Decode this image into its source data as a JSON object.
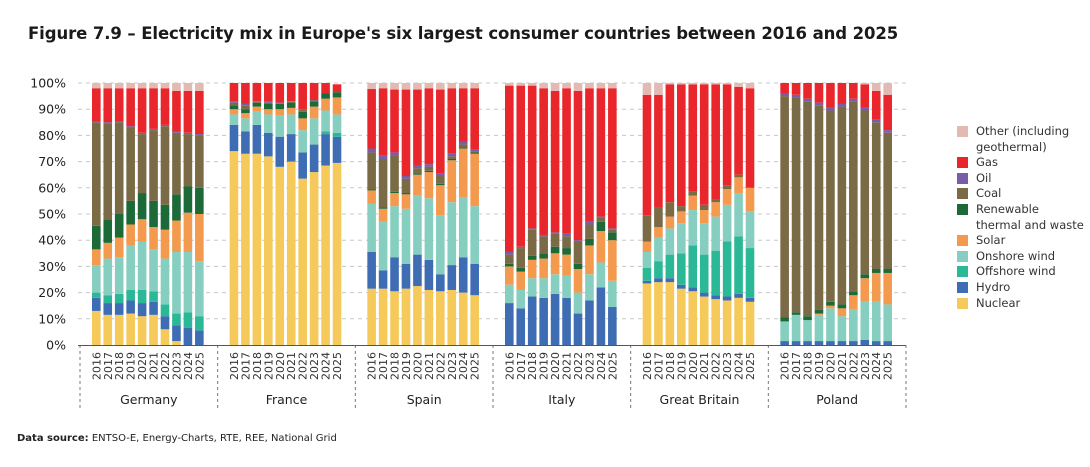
{
  "title": "Figure 7.9 – Electricity mix in Europe's six largest consumer countries between 2016 and 2025",
  "source": {
    "label": "Data source:",
    "text": "ENTSO-E, Energy-Charts, RTE, REE, National Grid"
  },
  "chart_data": {
    "type": "bar",
    "stacked": true,
    "title": "Figure 7.9 – Electricity mix in Europe's six largest consumer countries between 2016 and 2025",
    "xlabel": "",
    "ylabel": "",
    "ylim": [
      0,
      100
    ],
    "yticks": [
      "0%",
      "10%",
      "20%",
      "30%",
      "40%",
      "50%",
      "60%",
      "70%",
      "80%",
      "90%",
      "100%"
    ],
    "grid": true,
    "legend_position": "right",
    "countries": [
      "Germany",
      "France",
      "Spain",
      "Italy",
      "Great Britain",
      "Poland"
    ],
    "years": [
      "2016",
      "2017",
      "2018",
      "2019",
      "2020",
      "2021",
      "2022",
      "2023",
      "2024",
      "2025"
    ],
    "series": [
      {
        "name": "Nuclear",
        "color": "#f5c95a",
        "values": {
          "Germany": [
            13,
            11.5,
            11.5,
            12,
            11,
            11.5,
            6,
            1.5,
            0,
            0
          ],
          "France": [
            74,
            73,
            73,
            72,
            68,
            70,
            63.5,
            66,
            68.5,
            69.5
          ],
          "Spain": [
            21.5,
            21.5,
            20.5,
            21.5,
            22.5,
            21,
            20.5,
            21,
            20,
            19
          ],
          "Italy": [
            0,
            0,
            0,
            0,
            0,
            0,
            0,
            0,
            0,
            0
          ],
          "Great Britain": [
            23.5,
            24,
            24,
            21.5,
            20.5,
            18.5,
            17.5,
            17,
            18,
            16.5
          ],
          "Poland": [
            0,
            0,
            0,
            0,
            0,
            0,
            0,
            0,
            0,
            0
          ]
        }
      },
      {
        "name": "Hydro",
        "color": "#3e6db4",
        "values": {
          "Germany": [
            5,
            4.5,
            4.5,
            5,
            5,
            5,
            5,
            6,
            6.5,
            5.5
          ],
          "France": [
            10,
            8.5,
            11,
            9,
            11.5,
            10.5,
            10,
            10.5,
            12,
            10
          ],
          "Spain": [
            14,
            7,
            13,
            9.5,
            12,
            11.5,
            6.5,
            9.5,
            13.5,
            12
          ],
          "Italy": [
            16,
            14,
            18.5,
            18,
            19.5,
            18,
            12,
            17,
            22,
            14.5
          ],
          "Great Britain": [
            1,
            1.5,
            1.5,
            1.5,
            1.5,
            1.5,
            1.5,
            1.5,
            1.5,
            1.5
          ],
          "Poland": [
            1.5,
            1.5,
            1.5,
            1.5,
            1.5,
            1.5,
            1.5,
            2,
            1.5,
            1.5
          ]
        }
      },
      {
        "name": "Offshore wind",
        "color": "#2bb897",
        "values": {
          "Germany": [
            2,
            3,
            3.5,
            4,
            5,
            4,
            4.5,
            4.5,
            6,
            5.5
          ],
          "France": [
            0,
            0,
            0,
            0,
            0,
            0,
            0,
            0,
            1,
            1.5
          ],
          "Spain": [
            0,
            0,
            0,
            0,
            0,
            0,
            0,
            0,
            0,
            0
          ],
          "Italy": [
            0,
            0,
            0,
            0,
            0,
            0,
            0,
            0,
            0,
            0
          ],
          "Great Britain": [
            5,
            6.5,
            9,
            12,
            16,
            14.5,
            17,
            21,
            22,
            19
          ],
          "Poland": [
            0,
            0,
            0,
            0,
            0,
            0,
            0,
            0,
            0,
            0
          ]
        }
      },
      {
        "name": "Onshore wind",
        "color": "#86cfc0",
        "values": {
          "Germany": [
            10.5,
            14,
            14,
            17,
            18.5,
            16,
            17.5,
            23.5,
            23,
            21
          ],
          "France": [
            4,
            5,
            5,
            7,
            8,
            7.5,
            8.5,
            10,
            8,
            7
          ],
          "Spain": [
            18.5,
            18.5,
            19.5,
            21,
            22.5,
            23.5,
            22.5,
            24,
            23,
            22
          ],
          "Italy": [
            7,
            7,
            7,
            7.5,
            7.5,
            8.5,
            8,
            10,
            9.5,
            10
          ],
          "Great Britain": [
            6,
            9,
            10,
            11.5,
            13.5,
            12,
            13,
            14,
            16.5,
            14
          ],
          "Poland": [
            7.5,
            10,
            8,
            10,
            12.5,
            9.5,
            12,
            14.5,
            15,
            14
          ]
        }
      },
      {
        "name": "Solar",
        "color": "#f39a4f",
        "values": {
          "Germany": [
            6,
            6,
            7.5,
            8,
            8.5,
            8.5,
            11,
            12,
            15,
            18
          ],
          "France": [
            2,
            2,
            2,
            2,
            2.5,
            2.5,
            4.5,
            4.5,
            4.5,
            6.5
          ],
          "Spain": [
            5,
            5,
            5,
            5.5,
            8,
            10,
            11.5,
            16,
            18.5,
            20
          ],
          "Italy": [
            7,
            7,
            7,
            7.5,
            8,
            8,
            9,
            11,
            12,
            15.5
          ],
          "Great Britain": [
            4,
            4,
            4.5,
            4.5,
            5.5,
            5,
            5.5,
            6,
            6,
            9
          ],
          "Poland": [
            0,
            0,
            0,
            0.5,
            1,
            3,
            5.5,
            9,
            11,
            12
          ]
        }
      },
      {
        "name": "Renewable thermal and waste",
        "color": "#1c6a38",
        "values": {
          "Germany": [
            9,
            9,
            9,
            9,
            10,
            10,
            9.5,
            10,
            10,
            10
          ],
          "France": [
            1.5,
            1.5,
            1.5,
            2,
            2,
            2,
            2.5,
            2,
            2,
            2
          ],
          "Spain": [
            0.5,
            0.5,
            0.5,
            0.5,
            0.5,
            0.5,
            0.5,
            0.5,
            0.5,
            0.5
          ],
          "Italy": [
            1,
            1.5,
            1.5,
            2,
            2.5,
            2.5,
            2,
            2.5,
            3.5,
            3
          ],
          "Great Britain": [
            0,
            0,
            0,
            0,
            0,
            0,
            0,
            0,
            0,
            0
          ],
          "Poland": [
            1.5,
            1,
            1.5,
            1.5,
            1.5,
            1.5,
            1.5,
            1.5,
            1.5,
            1.5
          ]
        }
      },
      {
        "name": "Coal",
        "color": "#7a6a46",
        "values": {
          "Germany": [
            39.5,
            36.5,
            35,
            28,
            22.5,
            27,
            30,
            23.5,
            20,
            20
          ],
          "France": [
            1,
            1.5,
            0.3,
            0.5,
            0.3,
            0.3,
            1,
            0.3,
            0,
            0
          ],
          "Spain": [
            14,
            18.5,
            14,
            5.5,
            2,
            1.5,
            3,
            1,
            1,
            0.5
          ],
          "Italy": [
            3.5,
            7.5,
            10,
            6.5,
            5,
            4.5,
            8.5,
            5.5,
            1.5,
            1
          ],
          "Great Britain": [
            10,
            7.5,
            5.5,
            2,
            1.5,
            2,
            1,
            1.5,
            1,
            0
          ],
          "Poland": [
            84.5,
            82,
            82,
            78,
            73,
            75.5,
            72.5,
            62.5,
            56,
            52
          ]
        }
      },
      {
        "name": "Oil",
        "color": "#7b5ca8",
        "values": {
          "Germany": [
            0.5,
            0.5,
            0.5,
            0.5,
            0.5,
            0.5,
            0.5,
            0.5,
            0.5,
            0.5
          ],
          "France": [
            0.5,
            0.5,
            0.2,
            0.5,
            0.2,
            0.2,
            0,
            0.2,
            0,
            0
          ],
          "Spain": [
            1.5,
            1.5,
            1,
            1,
            1,
            1,
            1,
            1,
            1,
            0.5
          ],
          "Italy": [
            1,
            0.5,
            0.5,
            0.5,
            0.5,
            1,
            0.5,
            1,
            0.5,
            0.5
          ],
          "Great Britain": [
            0,
            0,
            0,
            0,
            0,
            0,
            0,
            0,
            0,
            0
          ],
          "Poland": [
            1,
            1,
            1,
            1,
            1,
            1,
            1,
            1,
            1,
            1
          ]
        }
      },
      {
        "name": "Gas",
        "color": "#e8262b",
        "values": {
          "Germany": [
            12.5,
            13,
            12.5,
            14.5,
            17,
            15.5,
            14,
            15.5,
            16,
            16.5
          ],
          "France": [
            7,
            8,
            7,
            7,
            7.5,
            7,
            10,
            6.5,
            4,
            3
          ],
          "Spain": [
            22.7,
            25.5,
            24,
            33,
            29,
            29,
            32,
            25,
            20.5,
            23.5
          ],
          "Italy": [
            63.5,
            61.5,
            54.5,
            56,
            54,
            55.5,
            57,
            51,
            49,
            53.5
          ],
          "Great Britain": [
            46,
            43,
            45,
            46.5,
            41,
            46,
            44,
            38.5,
            33.5,
            38
          ],
          "Poland": [
            4,
            4.5,
            6,
            7.5,
            9.5,
            8,
            6,
            9,
            11,
            13.5
          ]
        }
      },
      {
        "name": "Other (including geothermal)",
        "color": "#e2bab3",
        "values": {
          "Germany": [
            2,
            2,
            2,
            2,
            2,
            2,
            2,
            3,
            3,
            3
          ],
          "France": [
            0,
            0,
            0,
            0,
            0,
            0,
            0,
            0,
            0,
            0
          ],
          "Spain": [
            2.3,
            2,
            2.5,
            2.5,
            2.5,
            2,
            2.5,
            2,
            2,
            2
          ],
          "Italy": [
            1,
            1,
            1,
            2,
            3,
            2,
            3,
            2,
            2,
            2
          ],
          "Great Britain": [
            4.5,
            4.5,
            0.5,
            0.5,
            0.5,
            0.5,
            0.5,
            0.5,
            1.5,
            2
          ],
          "Poland": [
            0,
            0,
            0,
            0,
            0,
            0,
            0,
            0.5,
            3,
            4.5
          ]
        }
      }
    ]
  }
}
